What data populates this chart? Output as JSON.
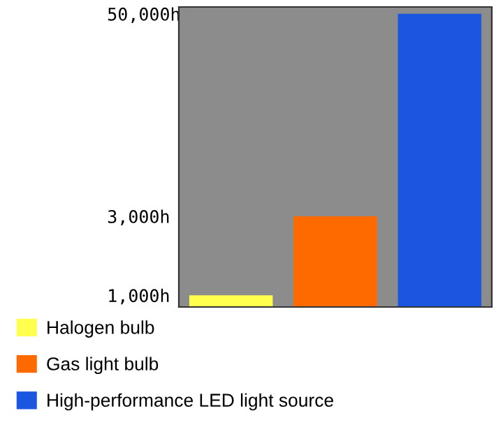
{
  "chart_data": {
    "type": "bar",
    "categories": [
      null,
      null,
      null
    ],
    "series": [
      {
        "name": "Halogen bulb",
        "color": "#ffff4d",
        "values": [
          1000,
          null,
          null
        ]
      },
      {
        "name": "Gas light bulb",
        "color": "#ff6a00",
        "values": [
          null,
          3000,
          null
        ]
      },
      {
        "name": "High-performance LED light source",
        "color": "#1a56e0",
        "values": [
          null,
          null,
          50000
        ]
      }
    ],
    "log": true,
    "ylim": [
      850,
      55000
    ],
    "yticks": [
      {
        "value": 1000,
        "label": "1,000h"
      },
      {
        "value": 3000,
        "label": "3,000h"
      },
      {
        "value": 50000,
        "label": "50,000h"
      }
    ],
    "grid": false,
    "legend": "bottom",
    "tick_labels": "y"
  }
}
